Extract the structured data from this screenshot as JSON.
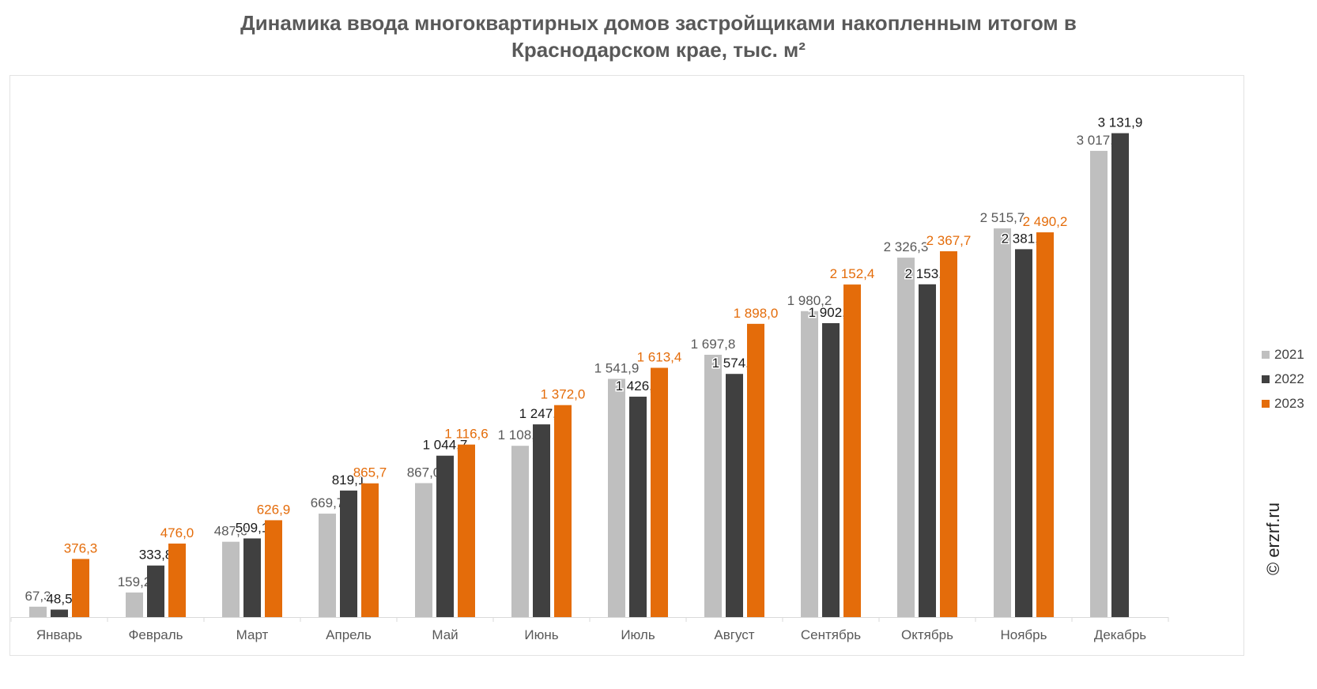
{
  "chart_data": {
    "type": "bar",
    "title_lines": [
      "Динамика ввода многоквартирных домов застройщиками накопленным итогом в",
      "Краснодарском крае, тыс. м²"
    ],
    "categories": [
      "Январь",
      "Февраль",
      "Март",
      "Апрель",
      "Май",
      "Июнь",
      "Июль",
      "Август",
      "Сентябрь",
      "Октябрь",
      "Ноябрь",
      "Декабрь"
    ],
    "series": [
      {
        "name": "2021",
        "color": "#bfbfbf",
        "label_color": "#595959",
        "values": [
          67.3,
          159.2,
          487.6,
          669.7,
          867.0,
          1108.7,
          1541.9,
          1697.8,
          1980.2,
          2326.3,
          2515.7,
          3017.5
        ],
        "labels": [
          "67,3",
          "159,2",
          "487,6",
          "669,7",
          "867,0",
          "1 108,7",
          "1 541,9",
          "1 697,8",
          "1 980,2",
          "2 326,3",
          "2 515,7",
          "3 017,5"
        ]
      },
      {
        "name": "2022",
        "color": "#404040",
        "label_color": "#1a1a1a",
        "values": [
          48.5,
          333.8,
          509.1,
          819.1,
          1044.7,
          1247.3,
          1426.6,
          1574.0,
          1902.3,
          2153.9,
          2381.1,
          3131.9
        ],
        "labels": [
          "48,5",
          "333,8",
          "509,1",
          "819,1",
          "1 044,7",
          "1 247,3",
          "1 426,6",
          "1 574,0",
          "1 902,3",
          "2 153,9",
          "2 381,1",
          "3 131,9"
        ]
      },
      {
        "name": "2023",
        "color": "#e46c0a",
        "label_color": "#e46c0a",
        "values": [
          376.3,
          476.0,
          626.9,
          865.7,
          1116.6,
          1372.0,
          1613.4,
          1898.0,
          2152.4,
          2367.7,
          2490.2,
          null
        ],
        "labels": [
          "376,3",
          "476,0",
          "626,9",
          "865,7",
          "1 116,6",
          "1 372,0",
          "1 613,4",
          "1 898,0",
          "2 152,4",
          "2 367,7",
          "2 490,2",
          null
        ]
      }
    ],
    "ylim": [
      0,
      3400
    ],
    "grid": false,
    "legend_position": "right",
    "credit": "© erzrf.ru"
  }
}
